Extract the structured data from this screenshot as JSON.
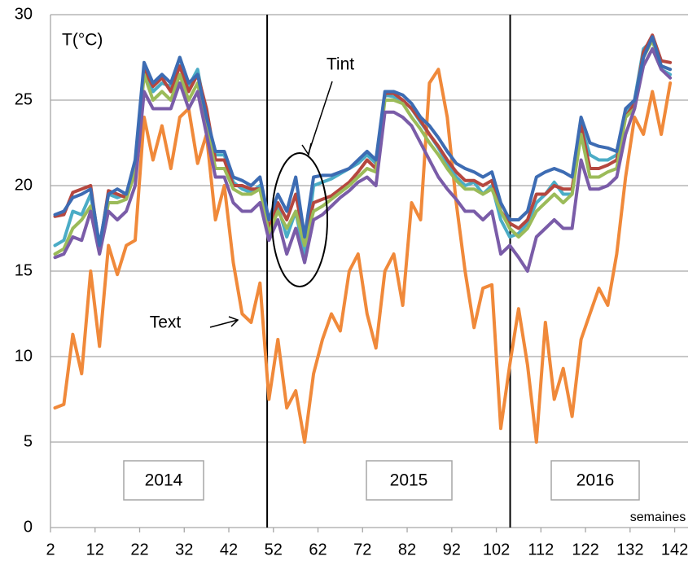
{
  "chart_data": {
    "type": "line",
    "y_label": "T(°C)",
    "x_label": "semaines",
    "annotations": [
      "Tint",
      "Text"
    ],
    "year_labels": [
      "2014",
      "2015",
      "2016"
    ],
    "separators": [
      50.6,
      105.1
    ],
    "xlim": [
      2,
      145
    ],
    "xticks": [
      2,
      12,
      22,
      32,
      42,
      52,
      62,
      72,
      82,
      92,
      102,
      112,
      122,
      132,
      142
    ],
    "ylim": [
      0,
      30
    ],
    "yticks": [
      0,
      5,
      10,
      15,
      20,
      25,
      30
    ],
    "grid": true,
    "x": [
      3,
      5,
      7,
      9,
      11,
      13,
      15,
      17,
      19,
      21,
      23,
      25,
      27,
      29,
      31,
      33,
      35,
      37,
      39,
      41,
      43,
      45,
      47,
      49,
      51,
      53,
      55,
      57,
      59,
      61,
      63,
      65,
      67,
      69,
      71,
      73,
      75,
      77,
      79,
      81,
      83,
      85,
      87,
      89,
      91,
      93,
      95,
      97,
      99,
      101,
      103,
      105,
      107,
      109,
      111,
      113,
      115,
      117,
      119,
      121,
      123,
      125,
      127,
      129,
      131,
      133,
      135,
      137,
      139,
      141
    ],
    "series": [
      {
        "color": "#f0893a",
        "values": [
          7,
          7.2,
          11.3,
          9,
          15,
          10.6,
          16.5,
          14.8,
          16.5,
          16.8,
          24,
          21.5,
          23.5,
          21,
          24,
          24.5,
          21.3,
          23,
          18,
          20,
          15.5,
          12.5,
          12,
          14.3,
          7.5,
          11,
          7,
          8,
          5,
          9,
          11,
          12.5,
          11.5,
          15,
          16,
          12.5,
          10.5,
          15,
          16,
          13,
          19,
          18,
          26,
          26.8,
          24,
          19,
          15,
          11.7,
          14,
          14.2,
          5.8,
          9.5,
          12.8,
          9.5,
          5,
          12,
          7.5,
          9.3,
          6.5,
          11,
          12.5,
          14,
          13,
          16,
          20.5,
          24,
          23,
          25.5,
          23,
          26
        ]
      },
      {
        "color": "#4bacc6",
        "values": [
          16.5,
          16.8,
          18.5,
          18.3,
          19.5,
          16.4,
          19.5,
          19.3,
          19.5,
          21.3,
          27,
          25.5,
          26,
          25.8,
          27.5,
          25.8,
          26.8,
          24,
          21.8,
          21.8,
          20.2,
          19.8,
          19.6,
          20,
          17,
          18.8,
          17,
          18.5,
          15.8,
          20,
          20.2,
          20.4,
          20.7,
          21,
          21.3,
          21.8,
          21.3,
          25.3,
          25.2,
          25,
          24.5,
          23.7,
          23,
          22.2,
          21.3,
          20.5,
          20,
          20.2,
          19.5,
          20,
          18,
          17,
          17.2,
          17.8,
          19,
          19.5,
          20.2,
          19.5,
          19.5,
          23.5,
          21.8,
          21.5,
          21.5,
          21.8,
          24.2,
          25,
          28,
          28.5,
          26.8,
          26.5
        ]
      },
      {
        "color": "#b5473f",
        "values": [
          18.2,
          18.3,
          19.6,
          19.8,
          20,
          16.3,
          19.7,
          19.5,
          19.3,
          21,
          26.8,
          25.8,
          26.3,
          25.5,
          27,
          25.5,
          26.5,
          24.5,
          21.5,
          21.5,
          20,
          20,
          19.8,
          19.8,
          17.5,
          19,
          18,
          19.5,
          16.8,
          19,
          19.2,
          19.4,
          19.8,
          20.2,
          20.8,
          21.5,
          21,
          25.4,
          25.4,
          25,
          24.5,
          23.8,
          23,
          22.3,
          21.5,
          20.8,
          20.3,
          20.3,
          20,
          20.3,
          18.5,
          17.8,
          17.5,
          18,
          19.5,
          19.5,
          20,
          19.8,
          19.8,
          23.5,
          21,
          21,
          21.2,
          21.5,
          24,
          24.8,
          27.8,
          28.8,
          27.3,
          27.2
        ]
      },
      {
        "color": "#9bbb59",
        "values": [
          16,
          16.3,
          17.5,
          18,
          18.8,
          16.2,
          19,
          19,
          19.2,
          20.8,
          26.5,
          25,
          25.5,
          25,
          26.5,
          25,
          26,
          23.5,
          21,
          21,
          19.8,
          19.5,
          19.5,
          19.8,
          17.2,
          18.5,
          17.5,
          18.5,
          16.5,
          18.5,
          18.8,
          19.2,
          19.6,
          20,
          20.5,
          21,
          20.8,
          25,
          25,
          24.8,
          24,
          23.3,
          22.5,
          21.8,
          21,
          20.3,
          19.8,
          19.8,
          19.5,
          19.8,
          18.5,
          17.5,
          17,
          17.5,
          18.5,
          19,
          19.5,
          19,
          19.5,
          23,
          20.5,
          20.5,
          20.8,
          21,
          24,
          24.5,
          27.5,
          28.5,
          27,
          26.8
        ]
      },
      {
        "color": "#7a5ca8",
        "values": [
          15.8,
          16,
          17,
          16.8,
          18.5,
          16,
          18.5,
          18,
          18.5,
          20,
          25.5,
          24.5,
          24.5,
          24.5,
          26,
          24.5,
          25.5,
          23,
          20.5,
          20.5,
          19,
          18.5,
          18.5,
          19,
          16.8,
          18,
          16,
          17.5,
          15.5,
          18,
          18.3,
          18.8,
          19.3,
          19.7,
          20.2,
          20.5,
          20,
          24.3,
          24.3,
          24,
          23.5,
          22.5,
          21.5,
          20.5,
          19.8,
          19.2,
          18.5,
          18.5,
          18,
          18.5,
          16,
          16.5,
          15.8,
          15,
          17,
          17.5,
          18,
          17.5,
          17.5,
          21.5,
          19.8,
          19.8,
          20,
          20.5,
          23,
          24.5,
          27,
          28,
          26.8,
          26.3
        ]
      },
      {
        "color": "#3d6cb3",
        "values": [
          18.3,
          18.5,
          19.3,
          19.5,
          19.8,
          16.5,
          19.5,
          19.8,
          19.5,
          21.5,
          27.2,
          26,
          26.5,
          26,
          27.5,
          26,
          26.5,
          24,
          22,
          22,
          20.5,
          20.3,
          20,
          20.5,
          18,
          19.5,
          18.5,
          20.5,
          17,
          20.5,
          20.6,
          20.6,
          20.8,
          21,
          21.5,
          22,
          21.5,
          25.5,
          25.5,
          25.3,
          24.8,
          24,
          23.5,
          22.8,
          22,
          21.3,
          21,
          20.8,
          20.5,
          20.8,
          19,
          18,
          18,
          18.5,
          20.5,
          20.8,
          21,
          20.8,
          20.5,
          24,
          22.5,
          22.3,
          22.2,
          22,
          24.5,
          25,
          27.5,
          28.7,
          27,
          26.8
        ]
      }
    ]
  }
}
